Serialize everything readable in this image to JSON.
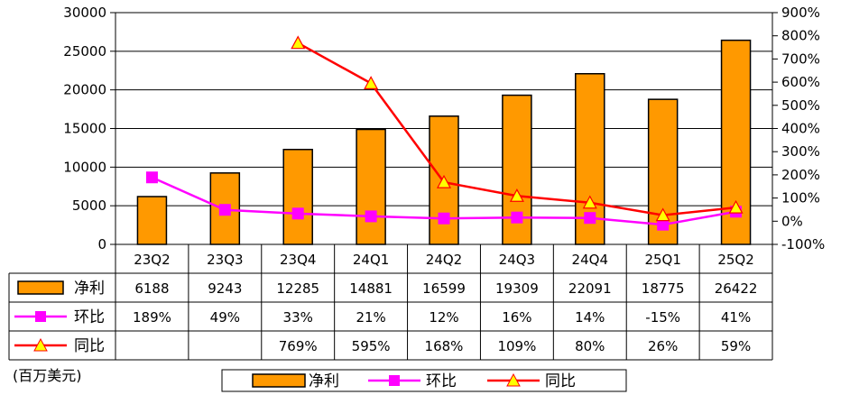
{
  "chart_data": {
    "type": "bar",
    "categories": [
      "23Q2",
      "23Q3",
      "23Q4",
      "24Q1",
      "24Q2",
      "24Q3",
      "24Q4",
      "25Q1",
      "25Q2"
    ],
    "y_left": {
      "ylim": [
        0,
        30000
      ],
      "ticks": [
        0,
        5000,
        10000,
        15000,
        20000,
        25000,
        30000
      ]
    },
    "y_right": {
      "ylim": [
        -100,
        900
      ],
      "ticks": [
        "-100%",
        "0%",
        "100%",
        "200%",
        "300%",
        "400%",
        "500%",
        "600%",
        "700%",
        "800%",
        "900%"
      ]
    },
    "unit_note": "(百万美元)",
    "series": [
      {
        "name": "净利",
        "kind": "bar",
        "axis": "left",
        "color": "#ff9900",
        "values": [
          6188,
          9243,
          12285,
          14881,
          16599,
          19309,
          22091,
          18775,
          26422
        ],
        "labels": [
          "6188",
          "9243",
          "12285",
          "14881",
          "16599",
          "19309",
          "22091",
          "18775",
          "26422"
        ]
      },
      {
        "name": "环比",
        "kind": "line",
        "axis": "right",
        "color": "#ff00ff",
        "marker": "square",
        "values": [
          189,
          49,
          33,
          21,
          12,
          16,
          14,
          -15,
          41
        ],
        "labels": [
          "189%",
          "49%",
          "33%",
          "21%",
          "12%",
          "16%",
          "14%",
          "-15%",
          "41%"
        ]
      },
      {
        "name": "同比",
        "kind": "line",
        "axis": "right",
        "color": "#ff0000",
        "marker": "triangle",
        "marker_fill": "#ffff00",
        "values": [
          null,
          null,
          769,
          595,
          168,
          109,
          80,
          26,
          59
        ],
        "labels": [
          "",
          "",
          "769%",
          "595%",
          "168%",
          "109%",
          "80%",
          "26%",
          "59%"
        ]
      }
    ],
    "grid": true,
    "legend_position": "bottom"
  }
}
